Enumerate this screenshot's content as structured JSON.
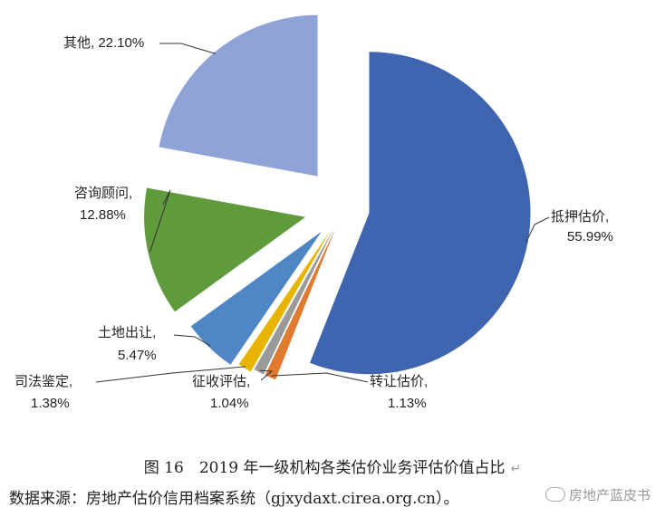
{
  "chart_data": {
    "type": "pie",
    "title": "",
    "slices": [
      {
        "category": "抵押估价",
        "value": 55.99,
        "value_label": "55.99%",
        "color": "#3f65b0"
      },
      {
        "category": "转让估价",
        "value": 1.13,
        "value_label": "1.13%",
        "color": "#e07a2f"
      },
      {
        "category": "征收评估",
        "value": 1.04,
        "value_label": "1.04%",
        "color": "#9a9a9a"
      },
      {
        "category": "司法鉴定",
        "value": 1.38,
        "value_label": "1.38%",
        "color": "#e8b400"
      },
      {
        "category": "土地出让",
        "value": 5.47,
        "value_label": "5.47%",
        "color": "#4f86c6"
      },
      {
        "category": "咨询顾问",
        "value": 12.88,
        "value_label": "12.88%",
        "color": "#5f9a3c"
      },
      {
        "category": "其他",
        "value": 22.1,
        "value_label": "22.10%",
        "color": "#8fa3d6"
      }
    ],
    "labels": {
      "mortgage": "抵押估价,",
      "mortgage_pct": "55.99%",
      "transfer": "转让估价,",
      "transfer_pct": "1.13%",
      "expropriation": "征收评估,",
      "expropriation_pct": "1.04%",
      "judicial": "司法鉴定,",
      "judicial_pct": "1.38%",
      "land": "土地出让,",
      "land_pct": "5.47%",
      "consulting": "咨询顾问,",
      "consulting_pct": "12.88%",
      "other": "其他, 22.10%"
    }
  },
  "caption": {
    "figure": "图 16　2019 年一级机构各类估价业务评估价值占比",
    "source": "数据来源：房地产估价信用档案系统（gjxydaxt.cirea.org.cn）。",
    "para_mark": "↵"
  },
  "watermark": {
    "text": "房地产蓝皮书"
  }
}
